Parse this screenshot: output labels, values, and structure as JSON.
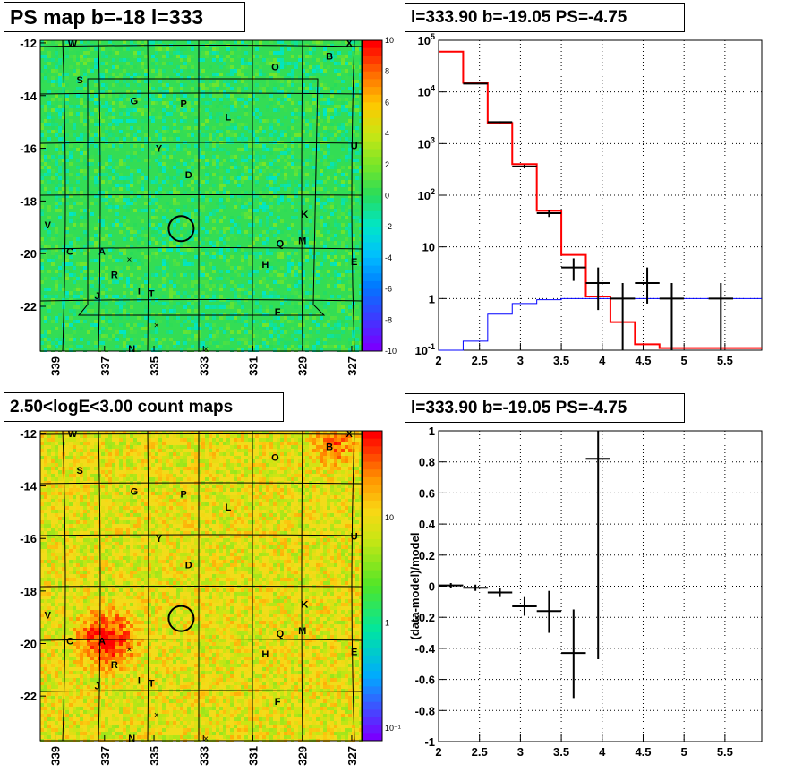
{
  "panels": {
    "ps_map": {
      "title": "PS map b=-18 l=333",
      "y_ticks": [
        "-12",
        "-14",
        "-16",
        "-18",
        "-20",
        "-22"
      ],
      "x_ticks": [
        "339",
        "337",
        "335",
        "333",
        "331",
        "329",
        "327"
      ],
      "colorbar_ticks": [
        "10",
        "8",
        "6",
        "4",
        "2",
        "0",
        "-2",
        "-4",
        "-6",
        "-8",
        "-10"
      ],
      "colors": {
        "background": "#33dd55"
      }
    },
    "spectrum": {
      "title": "l=333.90 b=-19.05 PS=-4.75"
    },
    "count_map": {
      "title": "2.50<logE<3.00 count maps",
      "y_ticks": [
        "-12",
        "-14",
        "-16",
        "-18",
        "-20",
        "-22"
      ],
      "x_ticks": [
        "339",
        "337",
        "335",
        "333",
        "331",
        "329",
        "327"
      ],
      "colorbar_ticks": [
        "10",
        "1",
        "10⁻¹"
      ],
      "colors": {
        "background": "#f2dc1a"
      }
    },
    "residual": {
      "title": "l=333.90 b=-19.05 PS=-4.75",
      "ylabel": "(data-model)/model"
    }
  },
  "source_labels": [
    {
      "label": "W",
      "l": 338.3,
      "b": -12.0
    },
    {
      "label": "X",
      "l": 327.1,
      "b": -12.0
    },
    {
      "label": "B",
      "l": 327.9,
      "b": -12.5
    },
    {
      "label": "O",
      "l": 330.1,
      "b": -12.9
    },
    {
      "label": "S",
      "l": 338.0,
      "b": -13.4
    },
    {
      "label": "G",
      "l": 335.8,
      "b": -14.2
    },
    {
      "label": "P",
      "l": 333.8,
      "b": -14.3
    },
    {
      "label": "L",
      "l": 332.0,
      "b": -14.8
    },
    {
      "label": "U",
      "l": 326.9,
      "b": -15.9
    },
    {
      "label": "Y",
      "l": 334.8,
      "b": -16.0
    },
    {
      "label": "D",
      "l": 333.6,
      "b": -17.0
    },
    {
      "label": "K",
      "l": 328.9,
      "b": -18.5
    },
    {
      "label": "V",
      "l": 339.3,
      "b": -18.9
    },
    {
      "label": "Q",
      "l": 329.9,
      "b": -19.6
    },
    {
      "label": "M",
      "l": 329.0,
      "b": -19.5
    },
    {
      "label": "C",
      "l": 338.4,
      "b": -19.9
    },
    {
      "label": "A",
      "l": 337.1,
      "b": -19.9
    },
    {
      "label": "E",
      "l": 326.9,
      "b": -20.3
    },
    {
      "label": "H",
      "l": 330.5,
      "b": -20.4
    },
    {
      "label": "R",
      "l": 336.6,
      "b": -20.8
    },
    {
      "label": "I",
      "l": 335.6,
      "b": -21.4
    },
    {
      "label": "T",
      "l": 335.1,
      "b": -21.5
    },
    {
      "label": "J",
      "l": 337.3,
      "b": -21.6
    },
    {
      "label": "F",
      "l": 330.0,
      "b": -22.2
    },
    {
      "label": "N",
      "l": 335.9,
      "b": -23.6
    }
  ],
  "cross_markers": [
    {
      "l": 336.0,
      "b": -20.2
    },
    {
      "l": 334.9,
      "b": -22.7
    },
    {
      "l": 332.9,
      "b": -23.6
    }
  ],
  "target_circle": {
    "l": 333.9,
    "b": -19.05
  },
  "chart_data": [
    {
      "type": "heatmap",
      "title": "PS map b=-18 l=333",
      "x_label_values": [
        339,
        337,
        335,
        333,
        331,
        329,
        327
      ],
      "y_label_values": [
        -12,
        -14,
        -16,
        -18,
        -20,
        -22
      ],
      "xlim": [
        339.6,
        326.6
      ],
      "ylim": [
        -23.7,
        -11.9
      ],
      "zlim": [
        -10,
        10
      ]
    },
    {
      "type": "line",
      "title": "l=333.90 b=-19.05 PS=-4.75",
      "log_y": true,
      "xlim": [
        2.0,
        5.95
      ],
      "ylim": [
        0.1,
        100000
      ],
      "x_ticks": [
        "2",
        "2.5",
        "3",
        "3.5",
        "4",
        "4.5",
        "5",
        "5.5"
      ],
      "y_ticks": [
        "10⁵",
        "10⁴",
        "10³",
        "10²",
        "10",
        "1",
        "10⁻¹"
      ],
      "series": [
        {
          "kind": "step",
          "color": "#ff0000",
          "edges": [
            2.0,
            2.3,
            2.6,
            2.9,
            3.2,
            3.5,
            3.8,
            4.1,
            4.4,
            4.7,
            5.0,
            5.3,
            5.6,
            5.95
          ],
          "values": [
            60000,
            15000,
            2500,
            400,
            50,
            7,
            1.1,
            0.35,
            0.13,
            0.11,
            0.11,
            0.11,
            0.11
          ]
        },
        {
          "kind": "step",
          "color": "#0000ff",
          "edges": [
            2.0,
            2.3,
            2.6,
            2.9,
            3.2,
            3.5,
            3.8,
            4.1,
            4.4,
            4.7,
            5.0,
            5.3,
            5.6,
            5.95
          ],
          "values": [
            0.1,
            0.15,
            0.5,
            0.8,
            0.95,
            1.0,
            1.0,
            1.0,
            1.0,
            1.0,
            1.0,
            1.0,
            1.0
          ]
        },
        {
          "kind": "errorbar",
          "color": "#000000",
          "x": [
            2.45,
            2.75,
            3.05,
            3.35,
            3.65,
            3.95,
            4.25,
            4.55,
            4.85,
            5.45
          ],
          "y": [
            14500,
            2600,
            360,
            45,
            4,
            2,
            1,
            2,
            1,
            1
          ],
          "ylo": [
            14300,
            2500,
            330,
            38,
            2.2,
            0.6,
            0.1,
            0.8,
            0.1,
            0.1
          ],
          "yhi": [
            14700,
            2700,
            390,
            52,
            6,
            4,
            2,
            4,
            2,
            2
          ],
          "xerr": 0.15
        }
      ]
    },
    {
      "type": "heatmap",
      "title": "2.50<logE<3.00 count maps",
      "x_label_values": [
        339,
        337,
        335,
        333,
        331,
        329,
        327
      ],
      "y_label_values": [
        -12,
        -14,
        -16,
        -18,
        -20,
        -22
      ],
      "xlim": [
        339.6,
        326.6
      ],
      "ylim": [
        -23.7,
        -11.9
      ],
      "log_z": true
    },
    {
      "type": "scatter",
      "title": "l=333.90 b=-19.05 PS=-4.75",
      "ylabel": "(data-model)/model",
      "xlim": [
        2.0,
        5.95
      ],
      "ylim": [
        -1,
        1
      ],
      "x_ticks": [
        "2",
        "2.5",
        "3",
        "3.5",
        "4",
        "4.5",
        "5",
        "5.5"
      ],
      "y_ticks": [
        "1",
        "0.8",
        "0.6",
        "0.4",
        "0.2",
        "0",
        "-0.2",
        "-0.4",
        "-0.6",
        "-0.8",
        "-1"
      ],
      "series": [
        {
          "kind": "errorbar",
          "color": "#000000",
          "x": [
            2.15,
            2.45,
            2.75,
            3.05,
            3.35,
            3.65,
            3.95
          ],
          "y": [
            0.005,
            -0.01,
            -0.04,
            -0.13,
            -0.16,
            -0.43,
            0.82
          ],
          "ylo": [
            -0.01,
            -0.03,
            -0.07,
            -0.19,
            -0.3,
            -0.72,
            -0.47
          ],
          "yhi": [
            0.02,
            0.01,
            -0.01,
            -0.07,
            -0.03,
            -0.15,
            1.0
          ],
          "xerr": 0.15
        }
      ]
    }
  ]
}
